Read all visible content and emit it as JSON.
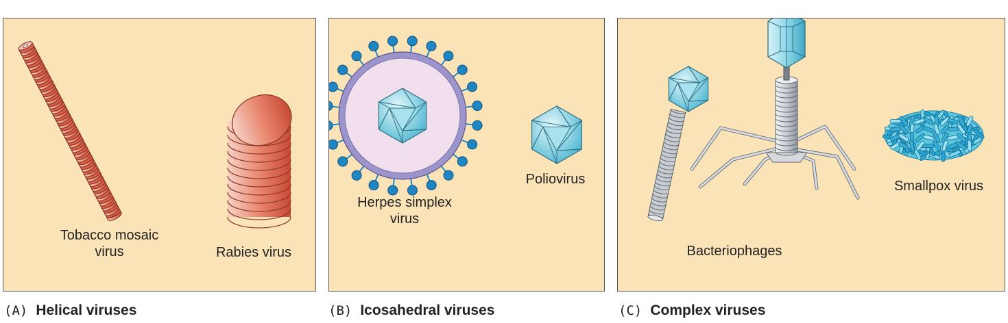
{
  "panels": [
    {
      "letter": "(A)",
      "title": "Helical viruses",
      "labels": {
        "tobacco": "Tobacco mosaic\nvirus",
        "rabies": "Rabies virus"
      }
    },
    {
      "letter": "(B)",
      "title": "Icosahedral viruses",
      "labels": {
        "herpes": "Herpes simplex\nvirus",
        "polio": "Poliovirus"
      }
    },
    {
      "letter": "(C)",
      "title": "Complex viruses",
      "labels": {
        "phage": "Bacteriophages",
        "smallpox": "Smallpox virus"
      }
    }
  ],
  "colors": {
    "panel_bg": "#fbe3b8",
    "helical_red": "#d9604a",
    "capsid_blue": "#5bc4dc",
    "envelope_purple": "#9b95cc",
    "spike_blue": "#1f86c4",
    "phage_grey": "#c7ccd1"
  }
}
